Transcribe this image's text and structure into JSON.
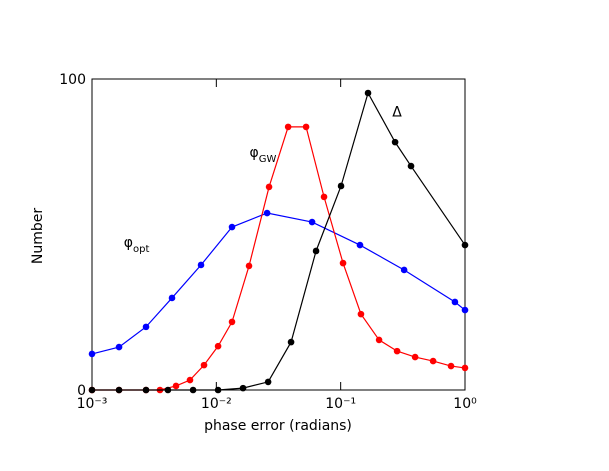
{
  "chart_data": {
    "type": "line",
    "x_label": "phase error (radians)",
    "y_label": "Number",
    "xscale": "log",
    "xlim": [
      0.001,
      1
    ],
    "ylim": [
      0,
      100
    ],
    "xticks": [
      {
        "value": 0.001,
        "label": "10⁻³"
      },
      {
        "value": 0.01,
        "label": "10⁻²"
      },
      {
        "value": 0.1,
        "label": "10⁻¹"
      },
      {
        "value": 1,
        "label": "10⁰"
      }
    ],
    "yticks": [
      0,
      100
    ],
    "series": [
      {
        "color": "#0000ff",
        "x": [
          0.001,
          0.00165,
          0.00272,
          0.0044,
          0.00753,
          0.01337,
          0.0256,
          0.0589,
          0.143,
          0.324,
          0.83,
          1
        ],
        "values": [
          11.6,
          13.8,
          20.3,
          29.6,
          40.2,
          52.4,
          56.9,
          54,
          46.6,
          38.6,
          28.3,
          25.7
        ]
      },
      {
        "color": "#ff0000",
        "x": [
          0.001,
          0.00165,
          0.00272,
          0.00352,
          0.00474,
          0.00614,
          0.00796,
          0.01033,
          0.01337,
          0.01832,
          0.02655,
          0.0378,
          0.0527,
          0.0735,
          0.1045,
          0.1456,
          0.2037,
          0.2843,
          0.397,
          0.554,
          0.772,
          1
        ],
        "values": [
          0,
          0,
          0,
          0,
          1.3,
          3.2,
          8,
          14.1,
          21.9,
          39.9,
          65.3,
          84.6,
          84.6,
          62.1,
          40.8,
          24.4,
          16.1,
          12.5,
          10.6,
          9.3,
          7.7,
          7.1
        ]
      },
      {
        "color": "#000000",
        "x": [
          0.001,
          0.00165,
          0.00272,
          0.00408,
          0.0065,
          0.01033,
          0.0164,
          0.0261,
          0.0399,
          0.0634,
          0.1007,
          0.166,
          0.274,
          0.368,
          1
        ],
        "values": [
          0,
          0,
          0,
          0,
          0,
          0,
          0.6,
          2.6,
          15.4,
          44.7,
          65.6,
          95.5,
          79.7,
          72,
          46.6
        ]
      }
    ],
    "annotations": [
      {
        "text": "φ",
        "subscript": "opt",
        "x": 0.0018,
        "y": 46
      },
      {
        "text": "φ",
        "subscript": "GW",
        "x": 0.0185,
        "y": 75
      },
      {
        "text": "Δ",
        "x": 0.26,
        "y": 88
      }
    ]
  }
}
